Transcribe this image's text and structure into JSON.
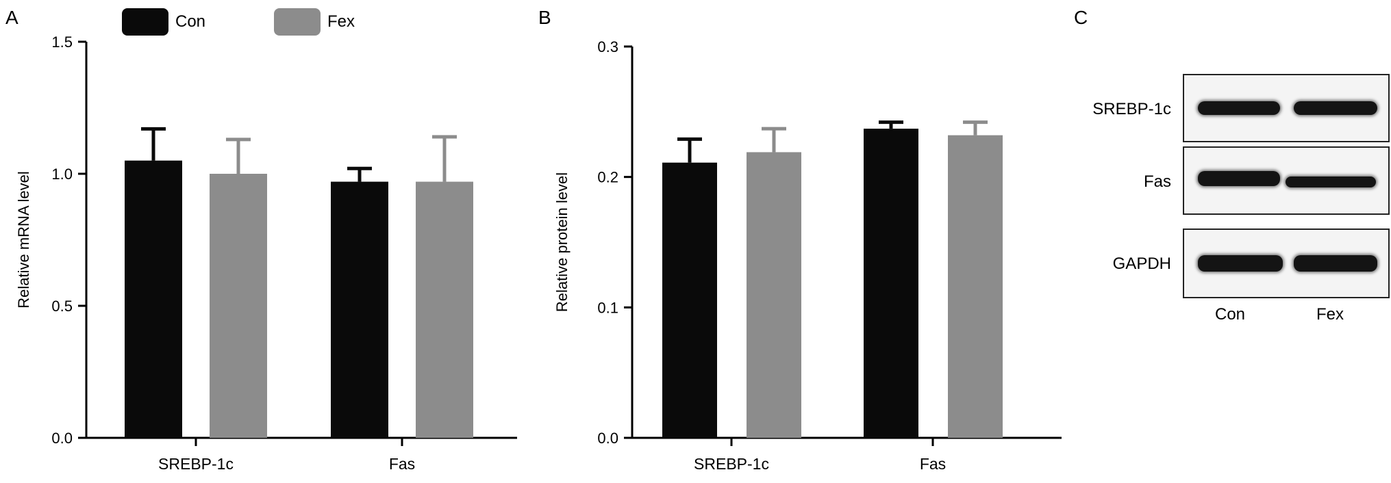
{
  "panels": {
    "a": "A",
    "b": "B",
    "c": "C"
  },
  "legend": [
    {
      "name": "Con",
      "color": "#0a0a0a"
    },
    {
      "name": "Fex",
      "color": "#8c8c8c"
    }
  ],
  "chart_data": [
    {
      "type": "bar",
      "ylabel": "Relative mRNA level",
      "categories": [
        "SREBP-1c",
        "Fas"
      ],
      "ylim": [
        0,
        1.5
      ],
      "yticks": [
        "0.0",
        "0.5",
        "1.0",
        "1.5"
      ],
      "ytick_values": [
        0,
        0.5,
        1.0,
        1.5
      ],
      "series": [
        {
          "name": "Con",
          "values": [
            1.05,
            0.97
          ],
          "errors": [
            0.12,
            0.05
          ],
          "color": "#0a0a0a"
        },
        {
          "name": "Fex",
          "values": [
            1.0,
            0.97
          ],
          "errors": [
            0.13,
            0.17
          ],
          "color": "#8c8c8c"
        }
      ]
    },
    {
      "type": "bar",
      "ylabel": "Relative protein level",
      "categories": [
        "SREBP-1c",
        "Fas"
      ],
      "ylim": [
        0,
        0.3
      ],
      "yticks": [
        "0.0",
        "0.1",
        "0.2",
        "0.3"
      ],
      "ytick_values": [
        0,
        0.1,
        0.2,
        0.3
      ],
      "series": [
        {
          "name": "Con",
          "values": [
            0.211,
            0.237
          ],
          "errors": [
            0.018,
            0.005
          ],
          "color": "#0a0a0a"
        },
        {
          "name": "Fex",
          "values": [
            0.219,
            0.232
          ],
          "errors": [
            0.018,
            0.01
          ],
          "color": "#8c8c8c"
        }
      ]
    }
  ],
  "blot": {
    "rows": [
      "SREBP-1c",
      "Fas",
      "GAPDH"
    ],
    "lanes": [
      "Con",
      "Fex"
    ]
  }
}
